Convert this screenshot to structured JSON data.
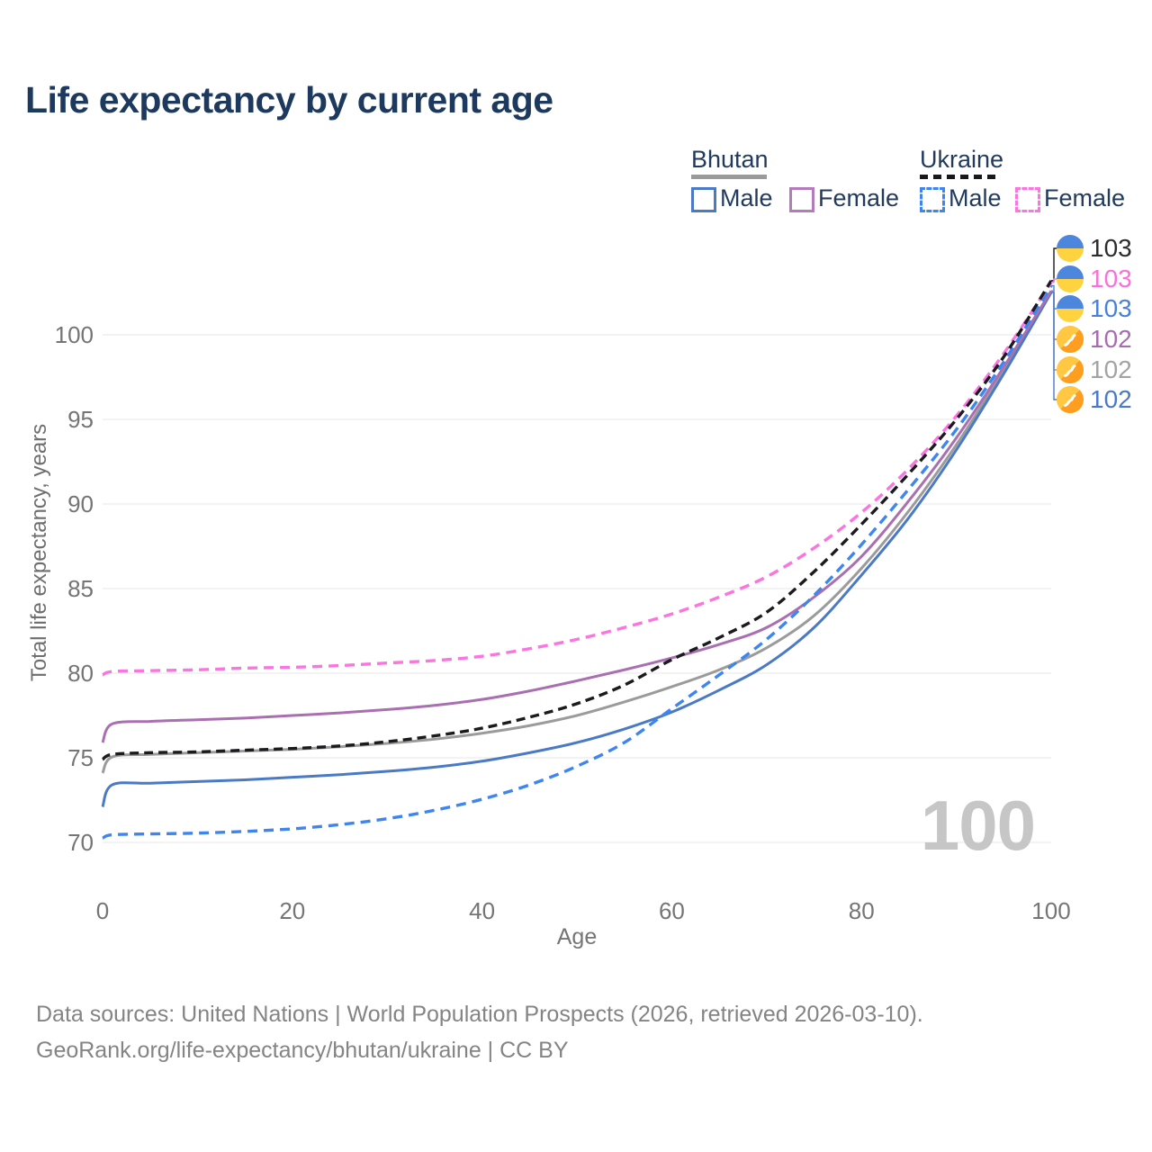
{
  "title": "Life expectancy by current age",
  "watermark": "100",
  "legend": {
    "groups": [
      {
        "label": "Bhutan",
        "line_style": "solid",
        "underline_color": "#9a9a9a",
        "items": [
          {
            "label": "Male",
            "color": "#4a7ac6",
            "dashed": false
          },
          {
            "label": "Female",
            "color": "#b27cba",
            "dashed": false
          }
        ]
      },
      {
        "label": "Ukraine",
        "line_style": "dashed",
        "underline_color": "#17171c",
        "items": [
          {
            "label": "Male",
            "color": "#3d86f2",
            "dashed": true
          },
          {
            "label": "Female",
            "color": "#fb74df",
            "dashed": true
          }
        ]
      }
    ]
  },
  "chart_data": {
    "type": "line",
    "title": "Life expectancy by current age",
    "xlabel": "Age",
    "ylabel": "Total life expectancy, years",
    "x_ticks": [
      0,
      20,
      40,
      60,
      80,
      100
    ],
    "y_ticks": [
      70,
      75,
      80,
      85,
      90,
      95,
      100
    ],
    "xlim": [
      0,
      100
    ],
    "ylim": [
      68.5,
      103.5
    ],
    "grid": "horizontal-only",
    "x": [
      0,
      1,
      5,
      10,
      15,
      20,
      25,
      30,
      35,
      40,
      45,
      50,
      55,
      60,
      65,
      70,
      75,
      80,
      85,
      90,
      95,
      100
    ],
    "series": [
      {
        "id": "ukraine-total",
        "name": "Ukraine",
        "sex": "Both",
        "country": "Ukraine",
        "color": "#1b1b1f",
        "label_color": "#2d2d2d",
        "dashed": true,
        "dash": "10 6",
        "flag": "ukraine",
        "end_label": "103",
        "values": [
          74.9,
          75.2,
          75.3,
          75.35,
          75.45,
          75.55,
          75.7,
          75.95,
          76.3,
          76.75,
          77.4,
          78.2,
          79.3,
          80.8,
          82.1,
          83.6,
          86.0,
          88.8,
          91.8,
          95.0,
          98.7,
          103.2
        ]
      },
      {
        "id": "ukraine-female",
        "name": "Ukraine Female",
        "sex": "Female",
        "country": "Ukraine",
        "color": "#fb74df",
        "label_color": "#fb6fd8",
        "dashed": true,
        "dash": "11 7",
        "flag": "ukraine",
        "end_label": "103",
        "values": [
          79.9,
          80.1,
          80.15,
          80.2,
          80.3,
          80.35,
          80.45,
          80.6,
          80.75,
          81.0,
          81.45,
          82.0,
          82.7,
          83.5,
          84.5,
          85.7,
          87.4,
          89.5,
          92.1,
          95.2,
          98.9,
          103.1
        ]
      },
      {
        "id": "ukraine-male",
        "name": "Ukraine Male",
        "sex": "Male",
        "country": "Ukraine",
        "color": "#3d86f2",
        "label_color": "#4a80d8",
        "dashed": true,
        "dash": "11 7",
        "flag": "ukraine",
        "end_label": "103",
        "values": [
          70.25,
          70.45,
          70.5,
          70.55,
          70.65,
          70.8,
          71.05,
          71.4,
          71.9,
          72.55,
          73.4,
          74.5,
          75.9,
          77.9,
          79.9,
          82.0,
          84.6,
          87.6,
          90.9,
          94.4,
          98.4,
          102.9
        ]
      },
      {
        "id": "bhutan-female",
        "name": "Bhutan Female",
        "sex": "Female",
        "country": "Bhutan",
        "color": "#a96fb1",
        "label_color": "#a76cb0",
        "dashed": false,
        "dash": "",
        "flag": "bhutan",
        "end_label": "102",
        "values": [
          75.9,
          77.0,
          77.15,
          77.25,
          77.35,
          77.5,
          77.65,
          77.85,
          78.1,
          78.45,
          78.95,
          79.55,
          80.2,
          80.9,
          81.7,
          82.7,
          84.5,
          86.9,
          90.2,
          93.9,
          98.1,
          102.6
        ]
      },
      {
        "id": "bhutan-total",
        "name": "Bhutan",
        "sex": "Both",
        "country": "Bhutan",
        "color": "#9b9b9b",
        "label_color": "#a3a3a3",
        "dashed": false,
        "dash": "",
        "flag": "bhutan",
        "end_label": "102",
        "values": [
          74.1,
          75.05,
          75.2,
          75.3,
          75.4,
          75.5,
          75.65,
          75.85,
          76.1,
          76.45,
          76.9,
          77.5,
          78.3,
          79.2,
          80.2,
          81.5,
          83.4,
          86.2,
          89.6,
          93.5,
          97.9,
          102.55
        ]
      },
      {
        "id": "bhutan-male",
        "name": "Bhutan Male",
        "sex": "Male",
        "country": "Bhutan",
        "color": "#4a7ac6",
        "label_color": "#4a7ac6",
        "dashed": false,
        "dash": "",
        "flag": "bhutan",
        "end_label": "102",
        "values": [
          72.1,
          73.4,
          73.5,
          73.6,
          73.7,
          73.85,
          74.0,
          74.2,
          74.45,
          74.8,
          75.3,
          75.9,
          76.7,
          77.7,
          79.0,
          80.5,
          82.7,
          85.8,
          89.2,
          93.2,
          97.7,
          102.5
        ]
      }
    ]
  },
  "colors": {
    "grid": "#ececec",
    "axis_text": "#757575",
    "ukraine_flag_blue": "#4d86dd",
    "ukraine_flag_yellow": "#ffd23f",
    "bhutan_flag_yellow": "#ffc742",
    "bhutan_flag_orange": "#ff9d1e"
  },
  "footer": {
    "line1": "Data sources: United Nations | World Population Prospects (2026, retrieved 2026-03-10).",
    "line2": "GeoRank.org/life-expectancy/bhutan/ukraine | CC BY"
  }
}
